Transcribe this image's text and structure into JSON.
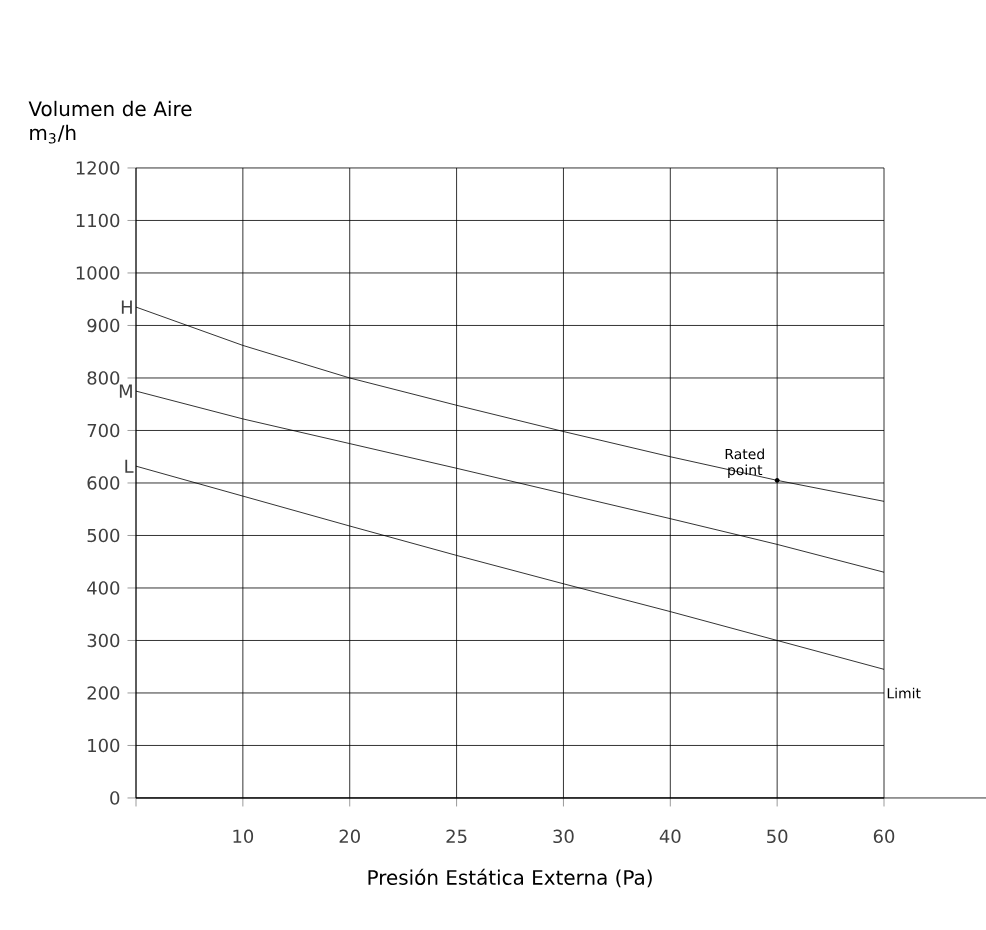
{
  "chart_data": {
    "type": "line",
    "ylabel": "Volumen de Aire m$_{3}$/h",
    "xlabel": "Presión Estática Externa (Pa)",
    "categories": [
      null,
      "10",
      "20",
      "25",
      "30",
      "40",
      "50",
      "60"
    ],
    "series": [
      {
        "name": "H",
        "color": "#000000",
        "values": [
          935,
          862,
          800,
          748,
          698,
          650,
          605,
          565
        ]
      },
      {
        "name": "M",
        "color": "#000000",
        "values": [
          775,
          722,
          675,
          628,
          580,
          532,
          483,
          430
        ]
      },
      {
        "name": "L",
        "color": "#000000",
        "values": [
          632,
          575,
          518,
          462,
          408,
          355,
          300,
          245
        ]
      }
    ],
    "ylim": [
      0,
      1200
    ],
    "yticks": [
      0,
      100,
      200,
      300,
      400,
      500,
      600,
      700,
      800,
      900,
      1000,
      1100,
      1200
    ],
    "annotations": [
      {
        "text": "Rated point",
        "x": "50",
        "y": 605
      },
      {
        "text": "Limit",
        "x": "60",
        "y": 245
      }
    ],
    "grid": true,
    "legend": false,
    "marker": "none",
    "line_style": "solid"
  }
}
